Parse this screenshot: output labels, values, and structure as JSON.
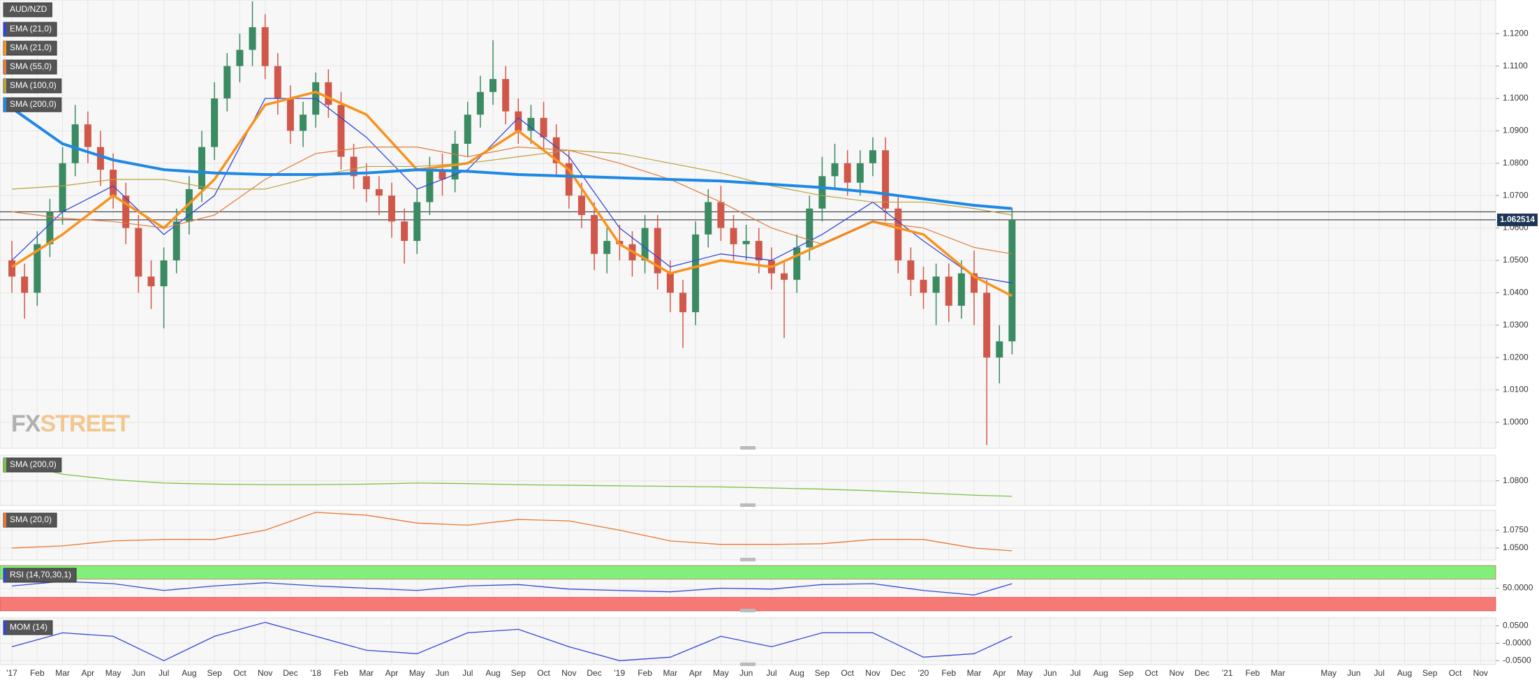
{
  "chart_data": [
    {
      "type": "candlestick",
      "symbol": "AUD/NZD",
      "x": [
        0,
        0.5,
        1,
        1.5,
        2,
        2.5,
        3,
        3.5,
        4,
        4.5,
        5,
        5.5,
        6,
        6.5,
        7,
        7.5,
        8,
        8.5,
        9,
        9.5,
        10,
        10.5,
        11,
        11.5,
        12,
        12.5,
        13,
        13.5,
        14,
        14.5,
        15,
        15.5,
        16,
        16.5,
        17,
        17.5,
        18,
        18.5,
        19,
        19.5,
        20,
        20.5,
        21,
        21.5,
        22,
        22.5,
        23,
        23.5,
        24,
        24.5,
        25,
        25.5,
        26,
        26.5,
        27,
        27.5,
        28,
        28.5,
        29,
        29.5,
        30,
        30.5,
        31,
        31.5,
        32,
        32.5,
        33,
        33.5,
        34,
        34.5,
        35,
        35.5,
        36,
        36.5,
        37,
        37.5,
        38,
        38.5,
        39,
        39.5
      ],
      "open": [
        1.05,
        1.045,
        1.04,
        1.055,
        1.065,
        1.08,
        1.092,
        1.085,
        1.078,
        1.07,
        1.06,
        1.045,
        1.042,
        1.05,
        1.062,
        1.072,
        1.085,
        1.1,
        1.11,
        1.115,
        1.122,
        1.11,
        1.1,
        1.09,
        1.095,
        1.105,
        1.098,
        1.082,
        1.076,
        1.072,
        1.07,
        1.062,
        1.056,
        1.068,
        1.078,
        1.075,
        1.086,
        1.095,
        1.102,
        1.106,
        1.096,
        1.09,
        1.094,
        1.088,
        1.08,
        1.07,
        1.064,
        1.052,
        1.056,
        1.055,
        1.05,
        1.06,
        1.046,
        1.04,
        1.034,
        1.058,
        1.068,
        1.06,
        1.055,
        1.056,
        1.05,
        1.046,
        1.044,
        1.054,
        1.066,
        1.076,
        1.08,
        1.074,
        1.08,
        1.084,
        1.066,
        1.05,
        1.044,
        1.04,
        1.045,
        1.036,
        1.046,
        1.04,
        1.02,
        1.025
      ],
      "high": [
        1.056,
        1.049,
        1.059,
        1.069,
        1.085,
        1.098,
        1.096,
        1.09,
        1.083,
        1.074,
        1.064,
        1.05,
        1.054,
        1.066,
        1.076,
        1.09,
        1.105,
        1.114,
        1.12,
        1.13,
        1.126,
        1.114,
        1.104,
        1.099,
        1.108,
        1.109,
        1.102,
        1.086,
        1.08,
        1.076,
        1.074,
        1.066,
        1.072,
        1.082,
        1.083,
        1.09,
        1.099,
        1.107,
        1.118,
        1.11,
        1.1,
        1.098,
        1.099,
        1.092,
        1.084,
        1.074,
        1.068,
        1.06,
        1.061,
        1.059,
        1.064,
        1.064,
        1.05,
        1.044,
        1.062,
        1.072,
        1.073,
        1.064,
        1.061,
        1.06,
        1.054,
        1.05,
        1.058,
        1.07,
        1.082,
        1.086,
        1.084,
        1.084,
        1.088,
        1.088,
        1.07,
        1.054,
        1.048,
        1.049,
        1.049,
        1.05,
        1.053,
        1.044,
        1.03,
        1.066
      ],
      "low": [
        1.04,
        1.032,
        1.036,
        1.051,
        1.061,
        1.076,
        1.08,
        1.073,
        1.066,
        1.055,
        1.04,
        1.035,
        1.029,
        1.046,
        1.058,
        1.068,
        1.081,
        1.096,
        1.105,
        1.11,
        1.106,
        1.095,
        1.086,
        1.085,
        1.091,
        1.094,
        1.078,
        1.072,
        1.068,
        1.064,
        1.057,
        1.049,
        1.052,
        1.064,
        1.07,
        1.071,
        1.082,
        1.091,
        1.098,
        1.092,
        1.086,
        1.086,
        1.084,
        1.076,
        1.066,
        1.06,
        1.047,
        1.046,
        1.05,
        1.045,
        1.046,
        1.041,
        1.034,
        1.023,
        1.03,
        1.054,
        1.056,
        1.05,
        1.05,
        1.046,
        1.041,
        1.026,
        1.04,
        1.05,
        1.062,
        1.072,
        1.07,
        1.07,
        1.076,
        1.062,
        1.046,
        1.039,
        1.035,
        1.03,
        1.031,
        1.032,
        1.03,
        0.993,
        1.012,
        1.021
      ],
      "close": [
        1.045,
        1.04,
        1.055,
        1.065,
        1.08,
        1.092,
        1.085,
        1.078,
        1.07,
        1.06,
        1.045,
        1.042,
        1.05,
        1.062,
        1.072,
        1.085,
        1.1,
        1.11,
        1.115,
        1.122,
        1.11,
        1.1,
        1.09,
        1.095,
        1.105,
        1.098,
        1.082,
        1.076,
        1.072,
        1.07,
        1.062,
        1.056,
        1.068,
        1.078,
        1.075,
        1.086,
        1.095,
        1.102,
        1.106,
        1.096,
        1.09,
        1.094,
        1.088,
        1.08,
        1.07,
        1.064,
        1.052,
        1.056,
        1.055,
        1.05,
        1.06,
        1.046,
        1.04,
        1.034,
        1.058,
        1.068,
        1.06,
        1.055,
        1.056,
        1.05,
        1.046,
        1.044,
        1.054,
        1.066,
        1.076,
        1.08,
        1.074,
        1.08,
        1.084,
        1.066,
        1.05,
        1.044,
        1.04,
        1.045,
        1.036,
        1.046,
        1.04,
        1.02,
        1.025,
        1.0625
      ],
      "up_color": "#3a8a62",
      "down_color": "#d0584a",
      "xlim": [
        -0.47,
        58.6
      ],
      "xticks": [
        {
          "value": 0,
          "label": "'17"
        },
        {
          "value": 1,
          "label": "Feb"
        },
        {
          "value": 2,
          "label": "Mar"
        },
        {
          "value": 3,
          "label": "Apr"
        },
        {
          "value": 4,
          "label": "May"
        },
        {
          "value": 5,
          "label": "Jun"
        },
        {
          "value": 6,
          "label": "Jul"
        },
        {
          "value": 7,
          "label": "Aug"
        },
        {
          "value": 8,
          "label": "Sep"
        },
        {
          "value": 9,
          "label": "Oct"
        },
        {
          "value": 10,
          "label": "Nov"
        },
        {
          "value": 11,
          "label": "Dec"
        },
        {
          "value": 12,
          "label": "'18"
        },
        {
          "value": 13,
          "label": "Feb"
        },
        {
          "value": 14,
          "label": "Mar"
        },
        {
          "value": 15,
          "label": "Apr"
        },
        {
          "value": 16,
          "label": "May"
        },
        {
          "value": 17,
          "label": "Jun"
        },
        {
          "value": 18,
          "label": "Jul"
        },
        {
          "value": 19,
          "label": "Aug"
        },
        {
          "value": 20,
          "label": "Sep"
        },
        {
          "value": 21,
          "label": "Oct"
        },
        {
          "value": 22,
          "label": "Nov"
        },
        {
          "value": 23,
          "label": "Dec"
        },
        {
          "value": 24,
          "label": "'19"
        },
        {
          "value": 25,
          "label": "Feb"
        },
        {
          "value": 26,
          "label": "Mar"
        },
        {
          "value": 27,
          "label": "Apr"
        },
        {
          "value": 28,
          "label": "May"
        },
        {
          "value": 29,
          "label": "Jun"
        },
        {
          "value": 30,
          "label": "Jul"
        },
        {
          "value": 31,
          "label": "Aug"
        },
        {
          "value": 32,
          "label": "Sep"
        },
        {
          "value": 33,
          "label": "Oct"
        },
        {
          "value": 34,
          "label": "Nov"
        },
        {
          "value": 35,
          "label": "Dec"
        },
        {
          "value": 36,
          "label": "'20"
        },
        {
          "value": 37,
          "label": "Feb"
        },
        {
          "value": 38,
          "label": "Mar"
        },
        {
          "value": 39,
          "label": "Apr"
        },
        {
          "value": 40,
          "label": "May"
        },
        {
          "value": 41,
          "label": "Jun"
        },
        {
          "value": 42,
          "label": "Jul"
        },
        {
          "value": 43,
          "label": "Aug"
        },
        {
          "value": 44,
          "label": "Sep"
        },
        {
          "value": 45,
          "label": "Oct"
        },
        {
          "value": 46,
          "label": "Nov"
        },
        {
          "value": 47,
          "label": "Dec"
        },
        {
          "value": 48,
          "label": "'21"
        },
        {
          "value": 49,
          "label": "Feb"
        },
        {
          "value": 50,
          "label": "Mar"
        },
        {
          "value": 52,
          "label": "May"
        },
        {
          "value": 53,
          "label": "Jun"
        },
        {
          "value": 54,
          "label": "Jul"
        },
        {
          "value": 55,
          "label": "Aug"
        },
        {
          "value": 56,
          "label": "Sep"
        },
        {
          "value": 57,
          "label": "Oct"
        },
        {
          "value": 58,
          "label": "Nov"
        }
      ],
      "ylim": [
        0.992,
        1.1304
      ],
      "yticks": [
        {
          "value": 1.0,
          "label": "1.0000"
        },
        {
          "value": 1.01,
          "label": "1.0100"
        },
        {
          "value": 1.02,
          "label": "1.0200"
        },
        {
          "value": 1.03,
          "label": "1.0300"
        },
        {
          "value": 1.04,
          "label": "1.0400"
        },
        {
          "value": 1.05,
          "label": "1.0500"
        },
        {
          "value": 1.06,
          "label": "1.0600"
        },
        {
          "value": 1.07,
          "label": "1.0700"
        },
        {
          "value": 1.08,
          "label": "1.0800"
        },
        {
          "value": 1.09,
          "label": "1.0900"
        },
        {
          "value": 1.1,
          "label": "1.1000"
        },
        {
          "value": 1.11,
          "label": "1.1100"
        },
        {
          "value": 1.12,
          "label": "1.1200"
        }
      ],
      "grid": true,
      "hlines": [
        1.065
      ],
      "last_price": 1.062514,
      "watermark": [
        "FX",
        "STREET"
      ],
      "overlays": {
        "x": [
          0,
          2,
          4,
          6,
          8,
          10,
          12,
          14,
          16,
          18,
          20,
          22,
          24,
          26,
          28,
          30,
          32,
          34,
          36,
          38,
          39.5
        ],
        "series": [
          {
            "name": "EMA (21,0)",
            "color": "#3347d6",
            "line_width": 1.3,
            "values": [
              1.05,
              1.065,
              1.073,
              1.058,
              1.07,
              1.1,
              1.1,
              1.088,
              1.072,
              1.078,
              1.094,
              1.082,
              1.06,
              1.048,
              1.052,
              1.05,
              1.058,
              1.068,
              1.056,
              1.045,
              1.043
            ]
          },
          {
            "name": "SMA (21,0)",
            "color": "#f7931e",
            "line_width": 3.5,
            "values": [
              1.048,
              1.058,
              1.07,
              1.06,
              1.075,
              1.098,
              1.102,
              1.095,
              1.078,
              1.08,
              1.09,
              1.078,
              1.055,
              1.046,
              1.05,
              1.048,
              1.055,
              1.062,
              1.058,
              1.045,
              1.039
            ]
          },
          {
            "name": "SMA (55,0)",
            "color": "#e07b39",
            "line_width": 1.2,
            "values": [
              1.065,
              1.063,
              1.062,
              1.06,
              1.064,
              1.075,
              1.083,
              1.085,
              1.085,
              1.082,
              1.085,
              1.084,
              1.08,
              1.075,
              1.068,
              1.06,
              1.055,
              1.062,
              1.06,
              1.054,
              1.052
            ]
          },
          {
            "name": "SMA (100,0)",
            "color": "#b9a23c",
            "line_width": 1.2,
            "values": [
              1.072,
              1.073,
              1.075,
              1.075,
              1.072,
              1.072,
              1.076,
              1.079,
              1.079,
              1.08,
              1.082,
              1.084,
              1.083,
              1.08,
              1.077,
              1.073,
              1.07,
              1.068,
              1.068,
              1.066,
              1.064
            ]
          },
          {
            "name": "SMA (200,0)",
            "color": "#1e88e5",
            "line_width": 4,
            "values": [
              1.097,
              1.086,
              1.081,
              1.078,
              1.077,
              1.0765,
              1.0765,
              1.077,
              1.078,
              1.0775,
              1.0765,
              1.076,
              1.0755,
              1.075,
              1.0745,
              1.0735,
              1.0725,
              1.071,
              1.069,
              1.067,
              1.066
            ]
          }
        ]
      }
    },
    {
      "type": "line",
      "x": [
        0,
        2,
        4,
        6,
        8,
        10,
        12,
        14,
        16,
        18,
        20,
        22,
        24,
        26,
        28,
        30,
        32,
        34,
        36,
        38,
        39.5
      ],
      "series": [
        {
          "name": "SMA (200,0)",
          "color": "#7cc242",
          "values": [
            1.097,
            1.086,
            1.081,
            1.078,
            1.077,
            1.0765,
            1.0765,
            1.077,
            1.078,
            1.0775,
            1.0765,
            1.076,
            1.0755,
            1.075,
            1.0745,
            1.0735,
            1.0725,
            1.071,
            1.069,
            1.067,
            1.066
          ]
        }
      ],
      "ylim": [
        1.0577,
        1.1032
      ],
      "yticks": [
        {
          "value": 1.08,
          "label": "1.0800"
        }
      ]
    },
    {
      "type": "line",
      "x": [
        0,
        2,
        4,
        6,
        8,
        10,
        12,
        14,
        16,
        18,
        20,
        22,
        24,
        26,
        28,
        30,
        32,
        34,
        36,
        38,
        39.5
      ],
      "series": [
        {
          "name": "SMA (20,0)",
          "color": "#e8782e",
          "values": [
            1.05,
            1.053,
            1.06,
            1.062,
            1.062,
            1.075,
            1.1,
            1.096,
            1.085,
            1.082,
            1.09,
            1.088,
            1.075,
            1.06,
            1.055,
            1.055,
            1.056,
            1.062,
            1.062,
            1.05,
            1.046
          ]
        }
      ],
      "ylim": [
        1.0333,
        1.1028
      ],
      "yticks": [
        {
          "value": 1.05,
          "label": "1.0500"
        },
        {
          "value": 1.075,
          "label": "1.0750"
        }
      ]
    },
    {
      "type": "line",
      "x": [
        0,
        2,
        4,
        6,
        8,
        10,
        12,
        14,
        16,
        18,
        20,
        22,
        24,
        26,
        28,
        30,
        32,
        34,
        36,
        38,
        39.5
      ],
      "series": [
        {
          "name": "RSI (14,70,30,1)",
          "color": "#3347d6",
          "values": [
            55,
            65,
            60,
            45,
            55,
            62,
            55,
            50,
            45,
            55,
            58,
            48,
            45,
            42,
            50,
            48,
            58,
            60,
            45,
            35,
            60
          ]
        }
      ],
      "bands": [
        {
          "from": 70,
          "to": 100,
          "color": "#80f07a"
        },
        {
          "from": 0,
          "to": 30,
          "color": "#f57a76"
        }
      ],
      "ylim": [
        0,
        100
      ],
      "yticks": [
        {
          "value": 50,
          "label": "50.0000"
        }
      ]
    },
    {
      "type": "line",
      "x": [
        0,
        2,
        4,
        6,
        8,
        10,
        12,
        14,
        16,
        18,
        20,
        22,
        24,
        26,
        28,
        30,
        32,
        34,
        36,
        38,
        39.5
      ],
      "series": [
        {
          "name": "MOM (14)",
          "color": "#3347d6",
          "values": [
            -0.01,
            0.03,
            0.02,
            -0.05,
            0.02,
            0.06,
            0.02,
            -0.02,
            -0.03,
            0.03,
            0.04,
            -0.01,
            -0.05,
            -0.04,
            0.02,
            -0.01,
            0.03,
            0.03,
            -0.04,
            -0.03,
            0.02
          ]
        }
      ],
      "ylim": [
        -0.0614,
        0.0729
      ],
      "yticks": [
        {
          "value": -0.05,
          "label": "-0.0500"
        },
        {
          "value": 0,
          "label": "-0.0000"
        },
        {
          "value": 0.05,
          "label": "0.0500"
        }
      ]
    }
  ]
}
